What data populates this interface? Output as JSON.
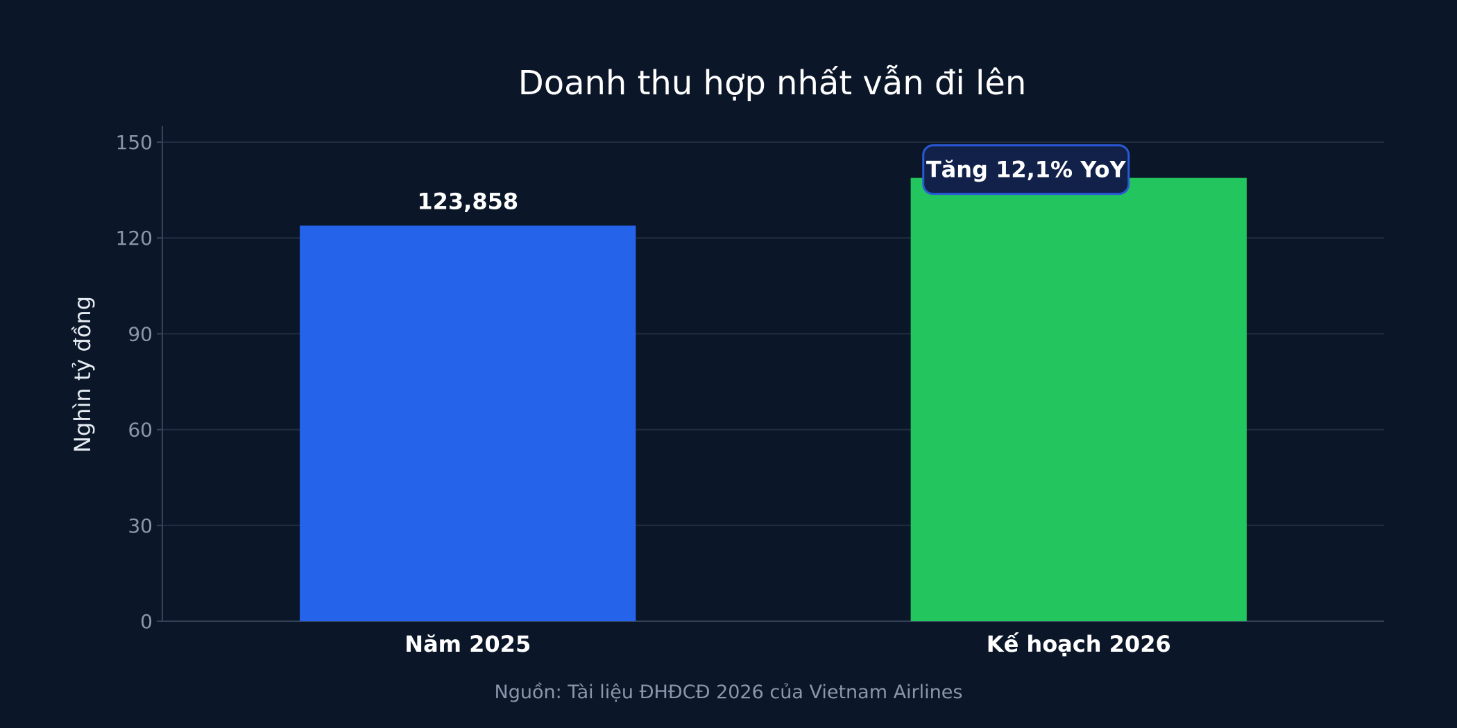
{
  "colors": {
    "background": "#0b1729",
    "grid": "#1f2d42",
    "axis": "#34435a",
    "tick_text": "#8a97ab",
    "text": "#ffffff",
    "source_text": "#8a97ab",
    "badge_fill": "#11214a",
    "badge_stroke": "#2a59d6"
  },
  "chart_data": {
    "type": "bar",
    "title": "Doanh thu hợp nhất vẫn đi lên",
    "ylabel": "Nghìn tỷ đồng",
    "xlabel": "",
    "ylim": [
      0,
      155
    ],
    "yticks": [
      0,
      30,
      60,
      90,
      120,
      150
    ],
    "categories": [
      "Năm 2025",
      "Kế hoạch 2026"
    ],
    "values": [
      123.858,
      138.8
    ],
    "bar_colors": [
      "#2563eb",
      "#22c55e"
    ],
    "data_labels": [
      "123,858",
      ""
    ],
    "annotation": "Tăng 12,1% YoY",
    "grid": true
  },
  "source": "Nguồn: Tài liệu ĐHĐCĐ 2026 của Vietnam Airlines"
}
